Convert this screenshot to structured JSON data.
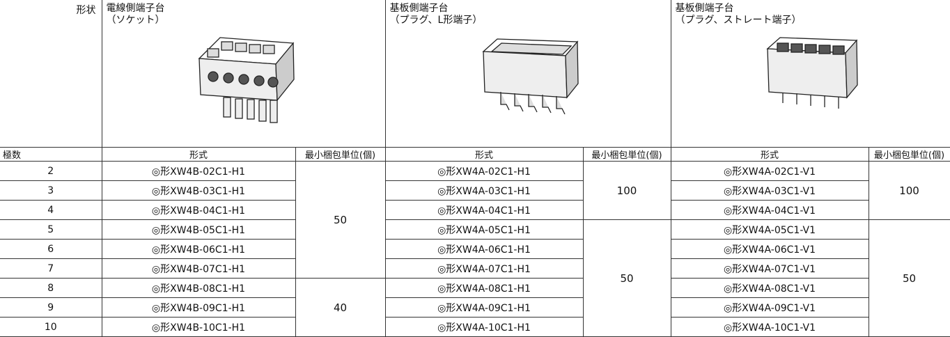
{
  "header": {
    "shape_label": "形状",
    "pole_label": "極数",
    "groups": [
      {
        "title": "電線側端子台",
        "subtitle": "（ソケット）",
        "model_header": "形式",
        "pack_header": "最小梱包単位(個)"
      },
      {
        "title": "基板側端子台",
        "subtitle": "（プラグ、L形端子）",
        "model_header": "形式",
        "pack_header": "最小梱包単位(個)"
      },
      {
        "title": "基板側端子台",
        "subtitle": "（プラグ、ストレート端子）",
        "model_header": "形式",
        "pack_header": "最小梱包単位(個)"
      }
    ]
  },
  "rows": [
    {
      "poles": 2,
      "models": [
        "◎形XW4B-02C1-H1",
        "◎形XW4A-02C1-H1",
        "◎形XW4A-02C1-V1"
      ]
    },
    {
      "poles": 3,
      "models": [
        "◎形XW4B-03C1-H1",
        "◎形XW4A-03C1-H1",
        "◎形XW4A-03C1-V1"
      ]
    },
    {
      "poles": 4,
      "models": [
        "◎形XW4B-04C1-H1",
        "◎形XW4A-04C1-H1",
        "◎形XW4A-04C1-V1"
      ]
    },
    {
      "poles": 5,
      "models": [
        "◎形XW4B-05C1-H1",
        "◎形XW4A-05C1-H1",
        "◎形XW4A-05C1-V1"
      ]
    },
    {
      "poles": 6,
      "models": [
        "◎形XW4B-06C1-H1",
        "◎形XW4A-06C1-H1",
        "◎形XW4A-06C1-V1"
      ]
    },
    {
      "poles": 7,
      "models": [
        "◎形XW4B-07C1-H1",
        "◎形XW4A-07C1-H1",
        "◎形XW4A-07C1-V1"
      ]
    },
    {
      "poles": 8,
      "models": [
        "◎形XW4B-08C1-H1",
        "◎形XW4A-08C1-H1",
        "◎形XW4A-08C1-V1"
      ]
    },
    {
      "poles": 9,
      "models": [
        "◎形XW4B-09C1-H1",
        "◎形XW4A-09C1-H1",
        "◎形XW4A-09C1-V1"
      ]
    },
    {
      "poles": 10,
      "models": [
        "◎形XW4B-10C1-H1",
        "◎形XW4A-10C1-H1",
        "◎形XW4A-10C1-V1"
      ]
    }
  ],
  "packs": [
    [
      50,
      40
    ],
    [
      100,
      50
    ],
    [
      100,
      50
    ]
  ]
}
